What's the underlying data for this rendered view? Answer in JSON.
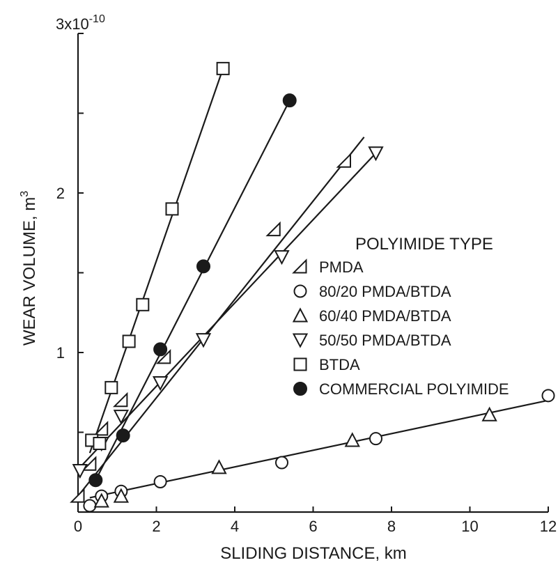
{
  "chart_data": {
    "type": "scatter",
    "xlabel": "SLIDING DISTANCE, km",
    "ylabel_main": "WEAR VOLUME, m",
    "ylabel_sup": "3",
    "ytop_label_base": "3x10",
    "ytop_label_exp": "-10",
    "xlim": [
      0,
      12
    ],
    "ylim": [
      0,
      3
    ],
    "x_ticks": [
      0,
      2,
      4,
      6,
      8,
      10,
      12
    ],
    "x_tick_labels": [
      "0",
      "2",
      "4",
      "6",
      "8",
      "10",
      "12"
    ],
    "y_ticks": [
      0,
      0.5,
      1,
      1.5,
      2,
      2.5,
      3
    ],
    "y_tick_labels": [
      "",
      "",
      "1",
      "",
      "2",
      "",
      ""
    ],
    "legend_title": "POLYIMIDE TYPE",
    "legend_position": "right",
    "grid": false,
    "series": [
      {
        "name": "PMDA",
        "marker": "half-triangle",
        "points": [
          [
            0.0,
            0.1
          ],
          [
            0.3,
            0.3
          ],
          [
            0.6,
            0.52
          ],
          [
            1.1,
            0.7
          ],
          [
            2.2,
            0.97
          ],
          [
            5.0,
            1.77
          ],
          [
            6.8,
            2.2
          ]
        ],
        "fit": [
          [
            0.0,
            0.1
          ],
          [
            7.3,
            2.35
          ]
        ]
      },
      {
        "name": "80/20 PMDA/BTDA",
        "marker": "circle",
        "points": [
          [
            0.3,
            0.04
          ],
          [
            0.6,
            0.1
          ],
          [
            1.1,
            0.13
          ],
          [
            2.1,
            0.19
          ],
          [
            5.2,
            0.31
          ],
          [
            7.6,
            0.46
          ],
          [
            12.0,
            0.73
          ]
        ],
        "fit": [
          [
            0.3,
            0.09
          ],
          [
            12.0,
            0.7
          ]
        ]
      },
      {
        "name": "60/40 PMDA/BTDA",
        "marker": "triangle-up",
        "points": [
          [
            0.6,
            0.07
          ],
          [
            1.1,
            0.1
          ],
          [
            3.6,
            0.28
          ],
          [
            7.0,
            0.45
          ],
          [
            10.5,
            0.61
          ]
        ],
        "fit": null
      },
      {
        "name": "50/50 PMDA/BTDA",
        "marker": "triangle-down",
        "points": [
          [
            0.05,
            0.26
          ],
          [
            0.6,
            0.43
          ],
          [
            1.1,
            0.6
          ],
          [
            2.1,
            0.81
          ],
          [
            3.2,
            1.08
          ],
          [
            5.2,
            1.6
          ],
          [
            7.6,
            2.25
          ]
        ],
        "fit": [
          [
            0.05,
            0.28
          ],
          [
            7.6,
            2.25
          ]
        ]
      },
      {
        "name": "BTDA",
        "marker": "square",
        "points": [
          [
            0.35,
            0.45
          ],
          [
            0.55,
            0.43
          ],
          [
            0.85,
            0.78
          ],
          [
            1.3,
            1.07
          ],
          [
            1.65,
            1.3
          ],
          [
            2.4,
            1.9
          ],
          [
            3.7,
            2.78
          ]
        ],
        "fit": [
          [
            0.3,
            0.37
          ],
          [
            3.7,
            2.78
          ]
        ]
      },
      {
        "name": "COMMERCIAL POLYIMIDE",
        "marker": "filled-circle",
        "points": [
          [
            0.45,
            0.2
          ],
          [
            1.15,
            0.48
          ],
          [
            2.1,
            1.02
          ],
          [
            3.2,
            1.54
          ],
          [
            5.4,
            2.58
          ]
        ],
        "fit": [
          [
            0.45,
            0.2
          ],
          [
            5.4,
            2.58
          ]
        ]
      }
    ]
  }
}
